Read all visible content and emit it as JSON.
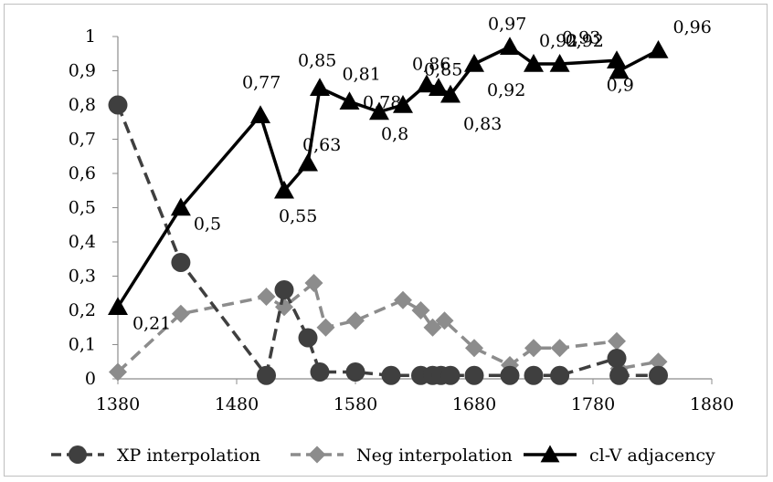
{
  "chart_data": {
    "type": "line",
    "title": "",
    "xlabel": "",
    "ylabel": "",
    "xlim": [
      1380,
      1880
    ],
    "ylim": [
      0,
      1
    ],
    "x_ticks": [
      "1380",
      "1480",
      "1580",
      "1680",
      "1780",
      "1880"
    ],
    "y_ticks": [
      "0",
      "0,1",
      "0,2",
      "0,3",
      "0,4",
      "0,5",
      "0,6",
      "0,7",
      "0,8",
      "0,9",
      "1"
    ],
    "grid": false,
    "legend_position": "bottom",
    "series": [
      {
        "name": "XP interpolation",
        "style": "dashed",
        "marker": "circle",
        "color": "#3f3f3f",
        "points": [
          [
            1380,
            0.8
          ],
          [
            1433,
            0.34
          ],
          [
            1505,
            0.01
          ],
          [
            1520,
            0.26
          ],
          [
            1540,
            0.12
          ],
          [
            1550,
            0.02
          ],
          [
            1580,
            0.02
          ],
          [
            1610,
            0.01
          ],
          [
            1635,
            0.01
          ],
          [
            1645,
            0.01
          ],
          [
            1652,
            0.01
          ],
          [
            1660,
            0.01
          ],
          [
            1680,
            0.01
          ],
          [
            1710,
            0.01
          ],
          [
            1730,
            0.01
          ],
          [
            1752,
            0.01
          ],
          [
            1800,
            0.06
          ],
          [
            1802,
            0.01
          ],
          [
            1835,
            0.01
          ]
        ]
      },
      {
        "name": "Neg interpolation",
        "style": "dashed",
        "marker": "diamond",
        "color": "#8c8c8c",
        "points": [
          [
            1380,
            0.02
          ],
          [
            1433,
            0.19
          ],
          [
            1505,
            0.24
          ],
          [
            1520,
            0.21
          ],
          [
            1545,
            0.28
          ],
          [
            1555,
            0.15
          ],
          [
            1580,
            0.17
          ],
          [
            1620,
            0.23
          ],
          [
            1635,
            0.2
          ],
          [
            1645,
            0.15
          ],
          [
            1655,
            0.17
          ],
          [
            1680,
            0.09
          ],
          [
            1710,
            0.04
          ],
          [
            1730,
            0.09
          ],
          [
            1752,
            0.09
          ],
          [
            1800,
            0.11
          ],
          [
            1802,
            0.03
          ],
          [
            1835,
            0.05
          ]
        ]
      },
      {
        "name": "cl-V adjacency",
        "style": "solid",
        "marker": "triangle",
        "color": "#000000",
        "points": [
          [
            1380,
            0.21
          ],
          [
            1433,
            0.5
          ],
          [
            1500,
            0.77
          ],
          [
            1520,
            0.55
          ],
          [
            1540,
            0.63
          ],
          [
            1550,
            0.85
          ],
          [
            1575,
            0.81
          ],
          [
            1600,
            0.78
          ],
          [
            1620,
            0.8
          ],
          [
            1640,
            0.86
          ],
          [
            1650,
            0.85
          ],
          [
            1660,
            0.83
          ],
          [
            1680,
            0.92
          ],
          [
            1710,
            0.97
          ],
          [
            1730,
            0.92
          ],
          [
            1752,
            0.92
          ],
          [
            1800,
            0.93
          ],
          [
            1802,
            0.9
          ],
          [
            1835,
            0.96
          ]
        ],
        "data_labels": [
          "0,21",
          "0,5",
          "0,77",
          "0,55",
          "0,63",
          "0,85",
          "0,81",
          "0,78",
          "0,8",
          "0,86",
          "0,85",
          "0,83",
          "0,92",
          "0,97",
          "0,92",
          "0,92",
          "0,93",
          "0,9",
          "0,96"
        ]
      }
    ]
  }
}
